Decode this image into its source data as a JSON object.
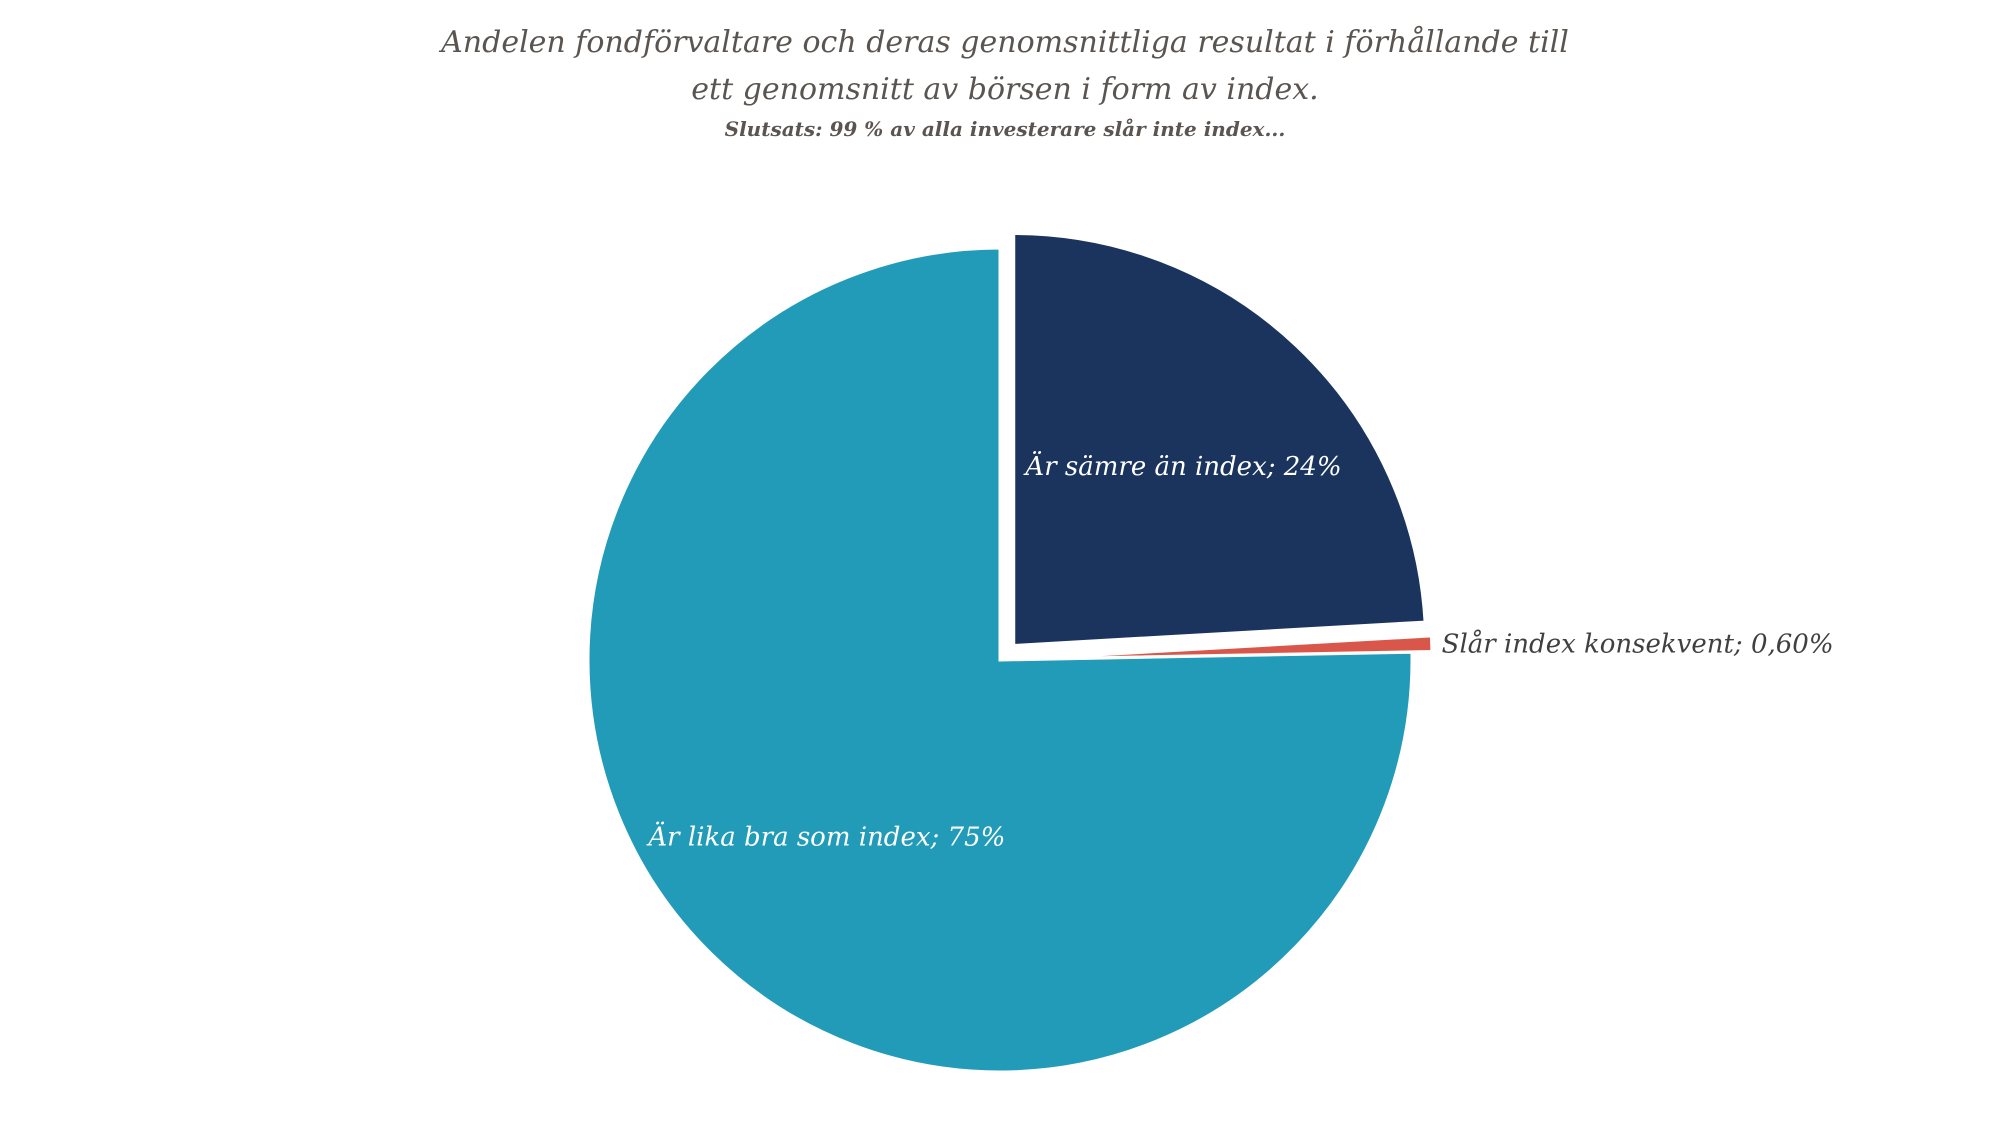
{
  "chart_data": {
    "type": "pie",
    "title_lines": [
      "Andelen fondförvaltare och deras genomsnittliga resultat i förhållande till",
      "ett genomsnitt av börsen i form av index."
    ],
    "subtitle": "Slutsats: 99 % av alla investerare slår inte index...",
    "slices": [
      {
        "label": "Är sämre än index; 24%",
        "value": 24,
        "color": "#1b345e",
        "exploded": true,
        "label_position": "inside"
      },
      {
        "label": "Slår index konsekvent; 0,60%",
        "value": 0.6,
        "color": "#d9574a",
        "exploded": true,
        "label_position": "outside"
      },
      {
        "label": "Är lika bra som index; 75%",
        "value": 75,
        "color": "#229bb8",
        "exploded": false,
        "label_position": "inside"
      }
    ],
    "start_angle": "top",
    "direction": "clockwise",
    "legend": "none"
  }
}
